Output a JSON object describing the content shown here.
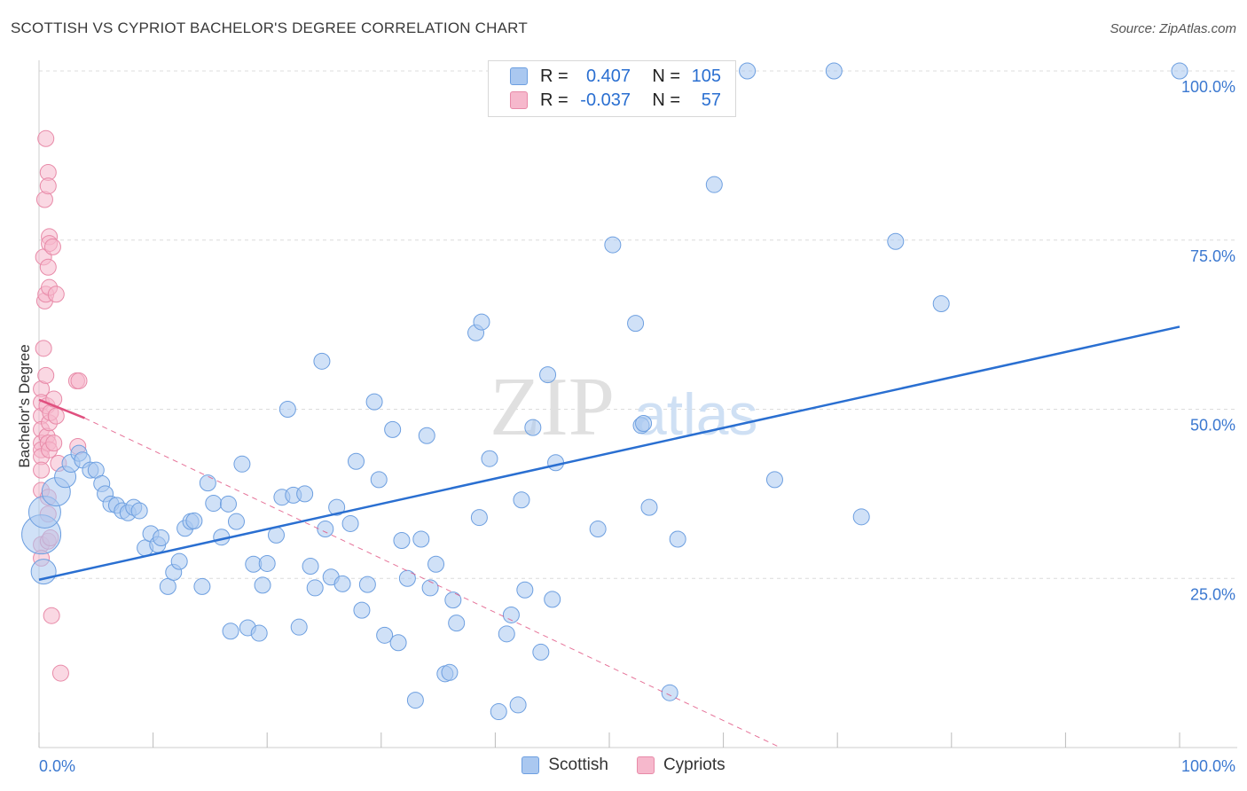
{
  "title": "SCOTTISH VS CYPRIOT BACHELOR'S DEGREE CORRELATION CHART",
  "source": "Source: ZipAtlas.com",
  "watermark": {
    "zip": "ZIP",
    "atlas": "atlas"
  },
  "colors": {
    "blue_fill": "#aac8f0",
    "blue_stroke": "#6d9fe0",
    "blue_line": "#2a6fd1",
    "pink_fill": "#f6b8cc",
    "pink_stroke": "#e88aa8",
    "pink_line": "#e0507f",
    "grid": "#dcdcdc",
    "tick_text": "#3b78d0"
  },
  "legend": {
    "rows": [
      {
        "r_label": "R =",
        "r_value": "0.407",
        "n_label": "N =",
        "n_value": "105"
      },
      {
        "r_label": "R =",
        "r_value": "-0.037",
        "n_label": "N =",
        "n_value": "57"
      }
    ]
  },
  "bottom_legend": {
    "series1": "Scottish",
    "series2": "Cypriots"
  },
  "chart_data": {
    "type": "scatter",
    "title": "SCOTTISH VS CYPRIOT BACHELOR'S DEGREE CORRELATION CHART",
    "xlabel": "",
    "ylabel": "Bachelor's Degree",
    "xlim": [
      0,
      100
    ],
    "ylim": [
      0,
      100
    ],
    "x_tick_labels": [
      "0.0%",
      "100.0%"
    ],
    "y_tick_labels": [
      {
        "value": 25,
        "label": "25.0%"
      },
      {
        "value": 50,
        "label": "50.0%"
      },
      {
        "value": 75,
        "label": "75.0%"
      },
      {
        "value": 100,
        "label": "100.0%"
      }
    ],
    "series": [
      {
        "name": "Scottish",
        "color": "#aac8f0",
        "trend": {
          "x0": 0,
          "y0": 24.8,
          "x1": 100,
          "y1": 62.2
        },
        "points": [
          [
            0.2,
            31.5,
            22
          ],
          [
            0.4,
            26,
            14
          ],
          [
            0.5,
            34.8,
            18
          ],
          [
            1.5,
            37.8,
            16
          ],
          [
            2.3,
            40,
            12
          ],
          [
            2.8,
            42,
            10
          ],
          [
            3.5,
            43.5,
            9
          ],
          [
            3.8,
            42.5,
            9
          ],
          [
            4.5,
            41,
            9
          ],
          [
            5,
            41,
            9
          ],
          [
            5.5,
            39,
            9
          ],
          [
            5.8,
            37.5,
            9
          ],
          [
            6.3,
            36,
            9
          ],
          [
            6.8,
            35.8,
            9
          ],
          [
            7.3,
            35,
            9
          ],
          [
            7.8,
            34.7,
            9
          ],
          [
            8.3,
            35.5,
            9
          ],
          [
            8.8,
            35,
            9
          ],
          [
            9.3,
            29.5,
            9
          ],
          [
            9.8,
            31.6,
            9
          ],
          [
            10.4,
            30,
            9
          ],
          [
            10.7,
            31,
            9
          ],
          [
            11.3,
            23.8,
            9
          ],
          [
            11.8,
            25.9,
            9
          ],
          [
            12.3,
            27.5,
            9
          ],
          [
            12.8,
            32.4,
            9
          ],
          [
            13.3,
            33.4,
            9
          ],
          [
            13.6,
            33.5,
            9
          ],
          [
            14.3,
            23.8,
            9
          ],
          [
            14.8,
            39.1,
            9
          ],
          [
            15.3,
            36.1,
            9
          ],
          [
            16,
            31.1,
            9
          ],
          [
            16.6,
            36,
            9
          ],
          [
            16.8,
            17.2,
            9
          ],
          [
            17.3,
            33.4,
            9
          ],
          [
            17.8,
            41.9,
            9
          ],
          [
            18.3,
            17.7,
            9
          ],
          [
            18.8,
            27.1,
            9
          ],
          [
            19.3,
            16.9,
            9
          ],
          [
            19.6,
            24,
            9
          ],
          [
            20,
            27.2,
            9
          ],
          [
            20.8,
            31.4,
            9
          ],
          [
            21.3,
            37,
            9
          ],
          [
            21.8,
            50,
            9
          ],
          [
            22.3,
            37.3,
            9
          ],
          [
            22.8,
            17.8,
            9
          ],
          [
            23.3,
            37.5,
            9
          ],
          [
            23.8,
            26.8,
            9
          ],
          [
            24.2,
            23.6,
            9
          ],
          [
            24.8,
            57.1,
            9
          ],
          [
            25.1,
            32.3,
            9
          ],
          [
            25.6,
            25.2,
            9
          ],
          [
            26.1,
            35.5,
            9
          ],
          [
            26.6,
            24.2,
            9
          ],
          [
            27.3,
            33.1,
            9
          ],
          [
            27.8,
            42.3,
            9
          ],
          [
            28.3,
            20.3,
            9
          ],
          [
            28.8,
            24.1,
            9
          ],
          [
            29.4,
            51.1,
            9
          ],
          [
            29.8,
            39.6,
            9
          ],
          [
            30.3,
            16.6,
            9
          ],
          [
            31,
            47,
            9
          ],
          [
            31.5,
            15.5,
            9
          ],
          [
            31.8,
            30.6,
            9
          ],
          [
            32.3,
            25,
            9
          ],
          [
            33,
            7,
            9
          ],
          [
            33.5,
            30.8,
            9
          ],
          [
            34,
            46.1,
            9
          ],
          [
            34.3,
            23.6,
            9
          ],
          [
            34.8,
            27.1,
            9
          ],
          [
            35.6,
            10.9,
            9
          ],
          [
            36,
            11.1,
            9
          ],
          [
            36.3,
            21.8,
            9
          ],
          [
            36.6,
            18.4,
            9
          ],
          [
            38.3,
            61.3,
            9
          ],
          [
            38.6,
            34,
            9
          ],
          [
            38.8,
            62.9,
            9
          ],
          [
            39.5,
            42.7,
            9
          ],
          [
            40.3,
            5.3,
            9
          ],
          [
            41,
            16.8,
            9
          ],
          [
            41.4,
            19.6,
            9
          ],
          [
            42,
            6.3,
            9
          ],
          [
            42.3,
            36.6,
            9
          ],
          [
            42.6,
            23.3,
            9
          ],
          [
            43.3,
            47.3,
            9
          ],
          [
            44,
            14.1,
            9
          ],
          [
            44.6,
            55.1,
            9
          ],
          [
            45,
            21.9,
            9
          ],
          [
            45.3,
            42.1,
            9
          ],
          [
            49,
            32.3,
            9
          ],
          [
            50.3,
            74.3,
            9
          ],
          [
            52.3,
            62.7,
            9
          ],
          [
            52.8,
            47.6,
            9
          ],
          [
            53,
            47.9,
            9
          ],
          [
            53.5,
            35.5,
            9
          ],
          [
            55.3,
            8.1,
            9
          ],
          [
            56,
            30.8,
            9
          ],
          [
            59.2,
            83.2,
            9
          ],
          [
            62.1,
            100,
            9
          ],
          [
            64.5,
            39.6,
            9
          ],
          [
            69.7,
            100,
            9
          ],
          [
            72.1,
            34.1,
            9
          ],
          [
            75.1,
            74.8,
            9
          ],
          [
            79.1,
            65.6,
            9
          ],
          [
            100,
            100,
            9
          ]
        ]
      },
      {
        "name": "Cypriots",
        "color": "#f6b8cc",
        "trend_solid": {
          "x0": 0,
          "y0": 51.4,
          "x1": 4,
          "y1": 48.7
        },
        "trend_dashed": {
          "x0": 4,
          "y0": 48.7,
          "x1": 65,
          "y1": 0
        },
        "points": [
          [
            0.2,
            53,
            9
          ],
          [
            0.2,
            51,
            9
          ],
          [
            0.2,
            49,
            9
          ],
          [
            0.2,
            47,
            9
          ],
          [
            0.2,
            45,
            9
          ],
          [
            0.2,
            44,
            9
          ],
          [
            0.2,
            43,
            9
          ],
          [
            0.2,
            41,
            9
          ],
          [
            0.2,
            38,
            9
          ],
          [
            0.2,
            30,
            9
          ],
          [
            0.2,
            28,
            9
          ],
          [
            0.4,
            59,
            9
          ],
          [
            0.4,
            72.5,
            9
          ],
          [
            0.5,
            66,
            9
          ],
          [
            0.5,
            81,
            9
          ],
          [
            0.6,
            90,
            9
          ],
          [
            0.6,
            67,
            9
          ],
          [
            0.6,
            55,
            9
          ],
          [
            0.7,
            50.5,
            9
          ],
          [
            0.7,
            46,
            9
          ],
          [
            0.8,
            85,
            9
          ],
          [
            0.8,
            83,
            9
          ],
          [
            0.8,
            71,
            9
          ],
          [
            0.8,
            45,
            9
          ],
          [
            0.8,
            37,
            9
          ],
          [
            0.8,
            34.5,
            9
          ],
          [
            0.8,
            30.5,
            9
          ],
          [
            0.9,
            75.5,
            9
          ],
          [
            0.9,
            74.5,
            9
          ],
          [
            0.9,
            68,
            9
          ],
          [
            0.9,
            48,
            9
          ],
          [
            0.9,
            44,
            9
          ],
          [
            1,
            49.5,
            9
          ],
          [
            1,
            31,
            9
          ],
          [
            1.1,
            19.5,
            9
          ],
          [
            1.2,
            74,
            9
          ],
          [
            1.3,
            51.5,
            9
          ],
          [
            1.3,
            45,
            9
          ],
          [
            1.5,
            67,
            9
          ],
          [
            1.5,
            49,
            9
          ],
          [
            1.7,
            42,
            9
          ],
          [
            1.9,
            11,
            9
          ],
          [
            3.3,
            54.2,
            9
          ],
          [
            3.4,
            44.5,
            9
          ],
          [
            3.5,
            54.2,
            9
          ]
        ]
      }
    ]
  }
}
